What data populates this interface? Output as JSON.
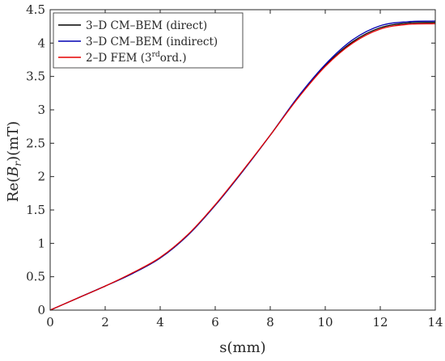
{
  "chart_data": {
    "type": "line",
    "title": "",
    "xlabel": "s(mm)",
    "ylabel": {
      "pre": "Re(",
      "base": "B",
      "sub": "r",
      "post": ")(mT)"
    },
    "xlim": [
      0,
      14
    ],
    "ylim": [
      0,
      4.5
    ],
    "xticks": [
      0,
      2,
      4,
      6,
      8,
      10,
      12,
      14
    ],
    "yticks": [
      0,
      0.5,
      1,
      1.5,
      2,
      2.5,
      3,
      3.5,
      4,
      4.5
    ],
    "xtick_labels": [
      "0",
      "2",
      "4",
      "6",
      "8",
      "10",
      "12",
      "14"
    ],
    "ytick_labels": [
      "0",
      "0.5",
      "1",
      "1.5",
      "2",
      "2.5",
      "3",
      "3.5",
      "4",
      "4.5"
    ],
    "grid": false,
    "legend_position": "top-left",
    "series": [
      {
        "name": "3–D CM–BEM (direct)",
        "color": "#000000",
        "x": [
          0,
          1,
          2,
          3,
          4,
          5,
          6,
          7,
          8,
          9,
          10,
          11,
          12,
          13,
          14
        ],
        "y": [
          0,
          0.18,
          0.36,
          0.55,
          0.78,
          1.12,
          1.57,
          2.08,
          2.62,
          3.18,
          3.66,
          4.02,
          4.23,
          4.3,
          4.31
        ]
      },
      {
        "name": "3–D CM–BEM (indirect)",
        "color": "#0000b3",
        "x": [
          0,
          1,
          2,
          3,
          4,
          5,
          6,
          7,
          8,
          9,
          10,
          11,
          12,
          13,
          14
        ],
        "y": [
          0,
          0.18,
          0.36,
          0.55,
          0.78,
          1.12,
          1.57,
          2.08,
          2.62,
          3.19,
          3.68,
          4.05,
          4.26,
          4.32,
          4.33
        ]
      },
      {
        "name": "2–D FEM (3rdord.)",
        "label_parts": {
          "pre": "2–D FEM (3",
          "sup": "rd",
          "post": "ord.)"
        },
        "color": "#e60000",
        "x": [
          0,
          1,
          2,
          3,
          4,
          5,
          6,
          7,
          8,
          9,
          10,
          11,
          12,
          13,
          14
        ],
        "y": [
          0,
          0.18,
          0.36,
          0.56,
          0.79,
          1.13,
          1.58,
          2.09,
          2.62,
          3.17,
          3.65,
          4.0,
          4.21,
          4.28,
          4.29
        ]
      }
    ]
  }
}
